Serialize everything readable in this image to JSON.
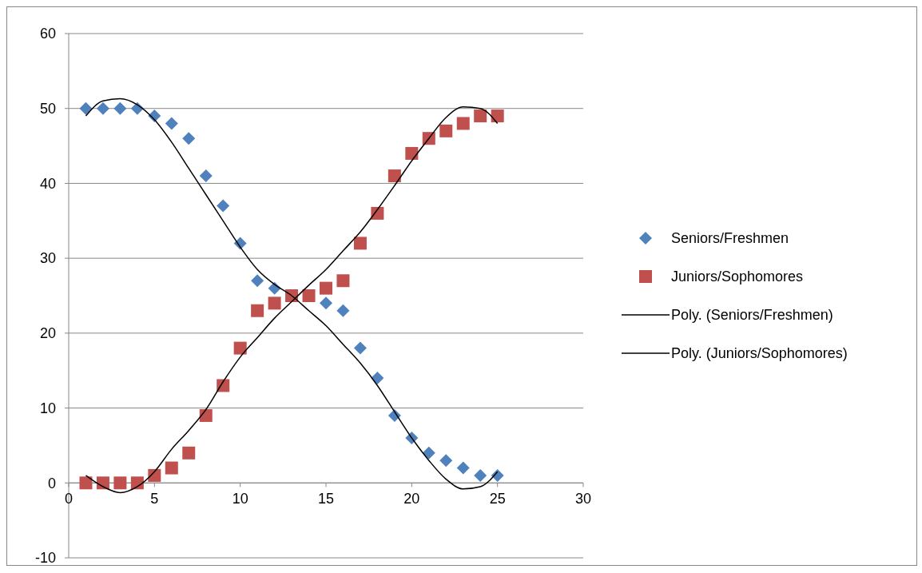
{
  "chart_data": {
    "type": "scatter",
    "x": [
      1,
      2,
      3,
      4,
      5,
      6,
      7,
      8,
      9,
      10,
      11,
      12,
      13,
      14,
      15,
      16,
      17,
      18,
      19,
      20,
      21,
      22,
      23,
      24,
      25
    ],
    "series": [
      {
        "name": "Seniors/Freshmen",
        "color": "#4f81bd",
        "marker": "diamond",
        "values": [
          50,
          50,
          50,
          50,
          49,
          48,
          46,
          41,
          37,
          32,
          27,
          26,
          null,
          null,
          24,
          23,
          18,
          14,
          9,
          6,
          4,
          3,
          2,
          1,
          1
        ]
      },
      {
        "name": "Juniors/Sophomores",
        "color": "#c0504d",
        "marker": "square",
        "values": [
          0,
          0,
          0,
          0,
          1,
          2,
          4,
          9,
          13,
          18,
          23,
          24,
          25,
          25,
          26,
          27,
          32,
          36,
          41,
          44,
          46,
          47,
          48,
          49,
          49
        ]
      },
      {
        "name": "Poly. (Seniors/Freshmen)",
        "type": "line",
        "color": "#000000",
        "marker": "none",
        "values": [
          49,
          51,
          51.3,
          50.5,
          48.5,
          45.5,
          42,
          38.5,
          35,
          31.5,
          28.5,
          26.5,
          25,
          23,
          21,
          18.5,
          16,
          13,
          9.5,
          6,
          3,
          0.5,
          -0.8,
          -0.5,
          1.5
        ]
      },
      {
        "name": "Poly. (Juniors/Sophomores)",
        "type": "line",
        "color": "#000000",
        "marker": "none",
        "values": [
          1,
          -0.5,
          -1.3,
          -0.5,
          1.5,
          4.5,
          7,
          9.8,
          13.5,
          16.8,
          19.4,
          22,
          24.2,
          26.4,
          28.5,
          31,
          33.5,
          36.5,
          39.7,
          43,
          46,
          48.8,
          50.2,
          50,
          48
        ]
      }
    ],
    "xlim": [
      0,
      30
    ],
    "xticks": [
      0,
      5,
      10,
      15,
      20,
      25,
      30
    ],
    "ylim": [
      -10,
      60
    ],
    "yticks": [
      -10,
      0,
      10,
      20,
      30,
      40,
      50,
      60
    ],
    "grid": "y",
    "legend": "right"
  }
}
